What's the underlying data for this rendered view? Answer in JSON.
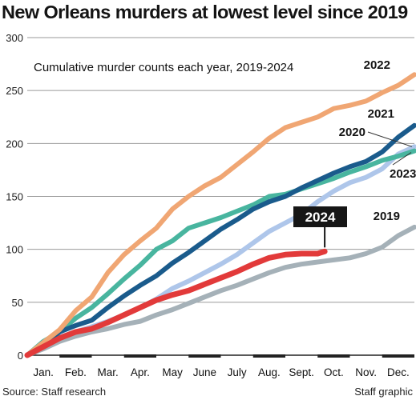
{
  "headline": "New Orleans murders at lowest level since 2019",
  "footer": {
    "source": "Source: Staff research",
    "credit": "Staff graphic"
  },
  "chart_data": {
    "type": "line",
    "subtitle": "Cumulative murder counts each year, 2019-2024",
    "x_categories": [
      "Jan.",
      "Feb.",
      "Mar.",
      "Apr.",
      "May",
      "June",
      "July",
      "Aug.",
      "Sept.",
      "Oct.",
      "Nov.",
      "Dec."
    ],
    "x_unit": "month (0 = Jan. 1, 12 = Dec. 31)",
    "xlim": [
      0,
      12
    ],
    "ylim": [
      0,
      300
    ],
    "y_ticks": [
      0,
      50,
      100,
      150,
      200,
      250,
      300
    ],
    "grid": "horizontal",
    "series": [
      {
        "name": "2019",
        "color": "#a5b1b8",
        "x": [
          0,
          0.5,
          1,
          1.5,
          2,
          2.5,
          3,
          3.5,
          4,
          4.5,
          5,
          5.5,
          6,
          6.5,
          7,
          7.5,
          8,
          8.5,
          9,
          9.5,
          10,
          10.5,
          11,
          11.5,
          12
        ],
        "y": [
          0,
          6,
          13,
          18,
          22,
          25,
          29,
          32,
          38,
          43,
          49,
          55,
          61,
          66,
          72,
          78,
          83,
          86,
          88,
          90,
          92,
          96,
          102,
          113,
          121
        ]
      },
      {
        "name": "2020",
        "color": "#aec6ea",
        "x": [
          0,
          0.5,
          1,
          1.5,
          2,
          2.5,
          3,
          3.5,
          4,
          4.5,
          5,
          5.5,
          6,
          6.5,
          7,
          7.5,
          8,
          8.5,
          9,
          9.5,
          10,
          10.5,
          11,
          11.5,
          12
        ],
        "y": [
          0,
          8,
          17,
          22,
          27,
          32,
          38,
          45,
          53,
          63,
          70,
          78,
          86,
          95,
          106,
          117,
          125,
          133,
          145,
          155,
          163,
          168,
          176,
          190,
          197
        ]
      },
      {
        "name": "2021",
        "color": "#1a5b8c",
        "x": [
          0,
          0.5,
          1,
          1.5,
          2,
          2.5,
          3,
          3.5,
          4,
          4.5,
          5,
          5.5,
          6,
          6.5,
          7,
          7.5,
          8,
          8.5,
          9,
          9.5,
          10,
          10.5,
          11,
          11.5,
          12
        ],
        "y": [
          0,
          10,
          22,
          28,
          33,
          45,
          56,
          66,
          75,
          87,
          97,
          108,
          119,
          128,
          138,
          145,
          150,
          158,
          165,
          172,
          178,
          183,
          192,
          206,
          217
        ]
      },
      {
        "name": "2022",
        "color": "#f0a673",
        "x": [
          0,
          0.5,
          1,
          1.5,
          2,
          2.5,
          3,
          3.5,
          4,
          4.5,
          5,
          5.5,
          6,
          6.5,
          7,
          7.5,
          8,
          8.5,
          9,
          9.5,
          10,
          10.5,
          11,
          11.5,
          12
        ],
        "y": [
          0,
          12,
          24,
          42,
          55,
          78,
          95,
          108,
          120,
          138,
          150,
          160,
          168,
          180,
          192,
          205,
          215,
          220,
          225,
          233,
          236,
          240,
          248,
          255,
          265
        ]
      },
      {
        "name": "2023",
        "color": "#48b59f",
        "x": [
          0,
          0.5,
          1,
          1.5,
          2,
          2.5,
          3,
          3.5,
          4,
          4.5,
          5,
          5.5,
          6,
          6.5,
          7,
          7.5,
          8,
          8.5,
          9,
          9.5,
          10,
          10.5,
          11,
          11.5,
          12
        ],
        "y": [
          0,
          13,
          22,
          35,
          45,
          58,
          72,
          85,
          100,
          108,
          120,
          125,
          130,
          136,
          142,
          150,
          152,
          157,
          162,
          167,
          173,
          178,
          184,
          188,
          193
        ]
      },
      {
        "name": "2024",
        "color": "#e23a3a",
        "x": [
          0,
          0.5,
          1,
          1.5,
          2,
          2.5,
          3,
          3.5,
          4,
          4.5,
          5,
          5.5,
          6,
          6.5,
          7,
          7.5,
          8,
          8.5,
          9,
          9.22
        ],
        "y": [
          0,
          8,
          16,
          22,
          25,
          31,
          38,
          45,
          52,
          57,
          61,
          67,
          73,
          79,
          86,
          92,
          95,
          96,
          96,
          98
        ]
      }
    ],
    "callout": {
      "series": "2024",
      "text": "2024"
    }
  }
}
